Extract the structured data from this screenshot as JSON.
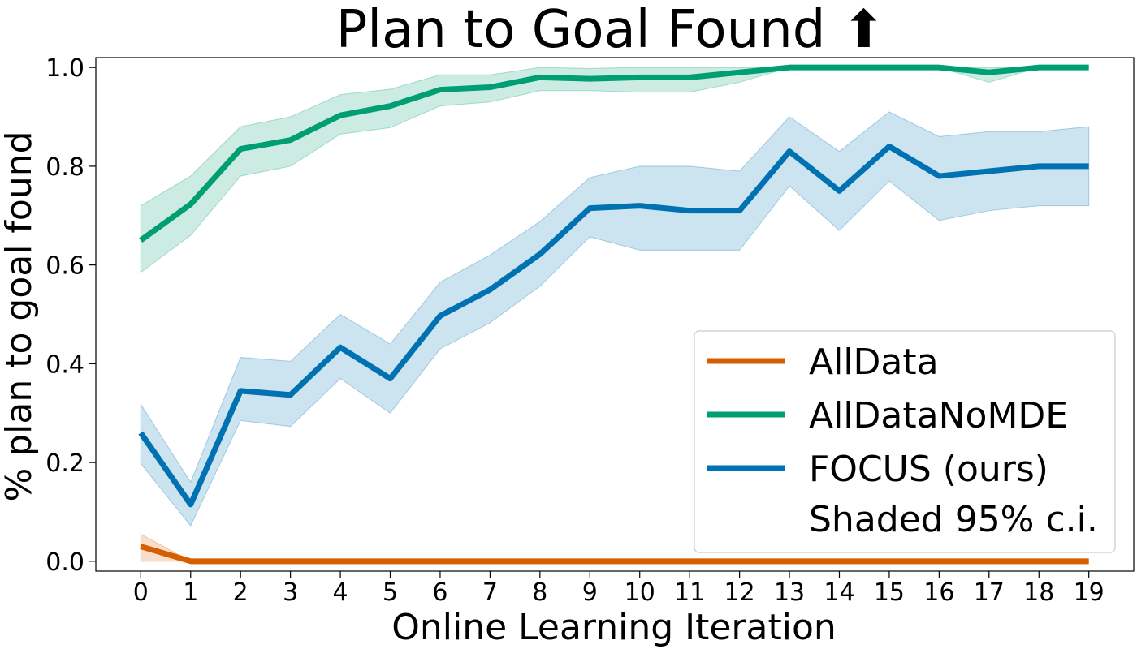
{
  "chart_data": {
    "type": "line",
    "title": "Plan to Goal Found ⬆",
    "xlabel": "Online Learning Iteration",
    "ylabel": "% plan to goal found",
    "x": [
      0,
      1,
      2,
      3,
      4,
      5,
      6,
      7,
      8,
      9,
      10,
      11,
      12,
      13,
      14,
      15,
      16,
      17,
      18,
      19
    ],
    "xlim": [
      -0.9,
      19.9
    ],
    "ylim": [
      -0.02,
      1.02
    ],
    "yticks": [
      "0.0",
      "0.2",
      "0.4",
      "0.6",
      "0.8",
      "1.0"
    ],
    "ytick_values": [
      0.0,
      0.2,
      0.4,
      0.6,
      0.8,
      1.0
    ],
    "grid": false,
    "legend_position": "bottom-right",
    "legend_note": "Shaded 95% c.i.",
    "series": [
      {
        "name": "AllData",
        "color": "#d55e00",
        "values": [
          0.03,
          0,
          0,
          0,
          0,
          0,
          0,
          0,
          0,
          0,
          0,
          0,
          0,
          0,
          0,
          0,
          0,
          0,
          0,
          0
        ],
        "lower": [
          0.0,
          0,
          0,
          0,
          0,
          0,
          0,
          0,
          0,
          0,
          0,
          0,
          0,
          0,
          0,
          0,
          0,
          0,
          0,
          0
        ],
        "upper": [
          0.055,
          0,
          0,
          0,
          0,
          0,
          0,
          0,
          0,
          0,
          0,
          0,
          0,
          0,
          0,
          0,
          0,
          0,
          0,
          0
        ]
      },
      {
        "name": "AllDataNoMDE",
        "color": "#009e73",
        "values": [
          0.65,
          0.723,
          0.835,
          0.853,
          0.903,
          0.922,
          0.955,
          0.96,
          0.98,
          0.977,
          0.98,
          0.98,
          0.99,
          1.0,
          1.0,
          1.0,
          1.0,
          0.99,
          1.0,
          1.0
        ],
        "lower": [
          0.585,
          0.66,
          0.78,
          0.8,
          0.865,
          0.878,
          0.922,
          0.93,
          0.953,
          0.953,
          0.95,
          0.95,
          0.97,
          1.0,
          1.0,
          1.0,
          1.0,
          0.97,
          1.0,
          1.0
        ],
        "upper": [
          0.72,
          0.78,
          0.88,
          0.9,
          0.945,
          0.956,
          0.985,
          0.985,
          1.0,
          0.998,
          1.0,
          1.0,
          1.0,
          1.0,
          1.0,
          1.0,
          1.0,
          1.0,
          1.0,
          1.0
        ]
      },
      {
        "name": "FOCUS (ours)",
        "color": "#0072b2",
        "values": [
          0.26,
          0.115,
          0.345,
          0.337,
          0.433,
          0.37,
          0.497,
          0.55,
          0.622,
          0.715,
          0.72,
          0.71,
          0.71,
          0.83,
          0.75,
          0.84,
          0.78,
          0.79,
          0.8,
          0.8
        ],
        "lower": [
          0.198,
          0.072,
          0.285,
          0.273,
          0.37,
          0.3,
          0.43,
          0.483,
          0.557,
          0.657,
          0.63,
          0.63,
          0.63,
          0.76,
          0.67,
          0.77,
          0.69,
          0.71,
          0.72,
          0.72
        ],
        "upper": [
          0.318,
          0.16,
          0.413,
          0.405,
          0.5,
          0.44,
          0.565,
          0.62,
          0.688,
          0.777,
          0.8,
          0.8,
          0.79,
          0.9,
          0.83,
          0.91,
          0.86,
          0.87,
          0.87,
          0.88
        ]
      }
    ]
  }
}
